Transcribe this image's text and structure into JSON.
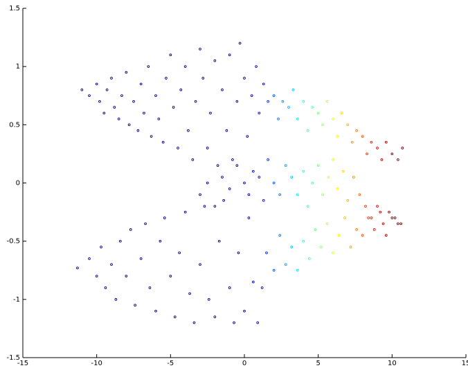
{
  "chart_data": {
    "type": "scatter",
    "colormap": "jet",
    "clim": [
      0,
      10
    ],
    "x": [
      -11,
      -10.5,
      -10,
      -9.8,
      -9.5,
      -9.3,
      -9,
      -8.8,
      -8.5,
      -8.3,
      -8,
      -7.8,
      -7.5,
      -7.2,
      -7,
      -6.8,
      -6.5,
      -6.3,
      -6,
      -5.8,
      -5.5,
      -5.3,
      -5,
      -4.8,
      -4.5,
      -4.3,
      -4,
      -3.8,
      -3.5,
      -3.3,
      -3,
      -2.8,
      -2.5,
      -2.3,
      -2,
      -1.8,
      -1.5,
      -1.2,
      -1,
      -0.8,
      -0.5,
      -0.3,
      0,
      0.2,
      0.5,
      0.8,
      1,
      1.3,
      1.6,
      2,
      2.3,
      2.6,
      3,
      3.3,
      3.6,
      4,
      4.3,
      4.6,
      5,
      5.3,
      5.6,
      6,
      6.3,
      6.6,
      7,
      7.3,
      7.6,
      8,
      8.3,
      8.6,
      9,
      9.3,
      9.6,
      10,
      10.4,
      10.7,
      -3,
      -2.5,
      -2,
      -1.5,
      -1,
      -0.5,
      0,
      0.3,
      0.6,
      1,
      1.3,
      1.6,
      2,
      2.4,
      2.8,
      3.2,
      3.6,
      4,
      4.3,
      4.6,
      5,
      5.3,
      5.7,
      6,
      6.3,
      6.7,
      7,
      7.4,
      7.8,
      8.2,
      8.6,
      9,
      9.4,
      9.8,
      10.2,
      10.6,
      -11.3,
      -10.5,
      -10,
      -9.7,
      -9.4,
      -9,
      -8.7,
      -8.4,
      -8,
      -7.7,
      -7.4,
      -7,
      -6.7,
      -6.4,
      -6,
      -5.7,
      -5.4,
      -5,
      -4.7,
      -4.4,
      -4,
      -3.7,
      -3.4,
      -3,
      -2.7,
      -2.4,
      -2,
      -1.7,
      -1.4,
      -1,
      -0.7,
      -0.4,
      0,
      0.3,
      0.6,
      0.9,
      1.2,
      1.5,
      2,
      2.4,
      2.8,
      3.2,
      3.6,
      4,
      4.4,
      4.8,
      5.2,
      5.6,
      6,
      6.4,
      6.8,
      7.2,
      7.6,
      8,
      8.4,
      8.8,
      9.2,
      9.6,
      10,
      10.4
    ],
    "values": [
      0.8,
      0.75,
      0.85,
      0.7,
      0.6,
      0.8,
      0.9,
      0.65,
      0.55,
      0.75,
      0.95,
      0.5,
      0.7,
      0.45,
      0.85,
      0.6,
      1.0,
      0.4,
      0.75,
      0.55,
      0.35,
      0.9,
      1.1,
      0.65,
      0.3,
      0.8,
      1.0,
      0.45,
      0.2,
      0.7,
      1.15,
      0.9,
      0.3,
      0.6,
      1.05,
      0.15,
      0.8,
      0.45,
      1.1,
      0.2,
      0.7,
      1.2,
      0.9,
      0.4,
      0.75,
      1.0,
      0.6,
      0.85,
      0.7,
      0.75,
      0.55,
      0.7,
      0.65,
      0.8,
      0.55,
      0.7,
      0.45,
      0.65,
      0.6,
      0.5,
      0.7,
      0.55,
      0.4,
      0.6,
      0.5,
      0.35,
      0.45,
      0.4,
      0.25,
      0.35,
      0.3,
      0.2,
      0.35,
      0.25,
      0.2,
      0.3,
      -0.1,
      0.0,
      -0.2,
      0.05,
      -0.05,
      0.15,
      0.0,
      -0.1,
      0.1,
      0.05,
      -0.15,
      0.2,
      0.0,
      -0.1,
      0.15,
      0.05,
      -0.1,
      0.1,
      -0.2,
      0.0,
      0.15,
      -0.1,
      0.05,
      0.2,
      -0.05,
      0.1,
      -0.15,
      0.05,
      -0.1,
      -0.2,
      -0.3,
      -0.2,
      -0.35,
      -0.25,
      -0.3,
      -0.35,
      -0.73,
      -0.65,
      -0.8,
      -0.55,
      -0.9,
      -0.7,
      -1.0,
      -0.5,
      -0.8,
      -0.4,
      -1.05,
      -0.65,
      -0.35,
      -0.9,
      -1.1,
      -0.5,
      -0.3,
      -0.8,
      -1.15,
      -0.6,
      -0.25,
      -0.95,
      -1.2,
      -0.7,
      -0.2,
      -1.0,
      -1.15,
      -0.5,
      -0.15,
      -0.9,
      -1.2,
      -0.6,
      -1.1,
      -0.3,
      -0.85,
      -1.2,
      -0.9,
      -0.6,
      -0.75,
      -0.45,
      -0.7,
      -0.55,
      -0.75,
      -0.5,
      -0.65,
      -0.4,
      -0.55,
      -0.35,
      -0.6,
      -0.45,
      -0.3,
      -0.55,
      -0.4,
      -0.45,
      -0.3,
      -0.4,
      -0.25,
      -0.45,
      -0.3,
      -0.35
    ],
    "xlim": [
      -15,
      15
    ],
    "ylim": [
      -1.5,
      1.5
    ],
    "xticks": [
      -15,
      -10,
      -5,
      0,
      5,
      10,
      15
    ],
    "yticks": [
      -1.5,
      -1,
      -0.5,
      0,
      0.5,
      1,
      1.5
    ]
  }
}
